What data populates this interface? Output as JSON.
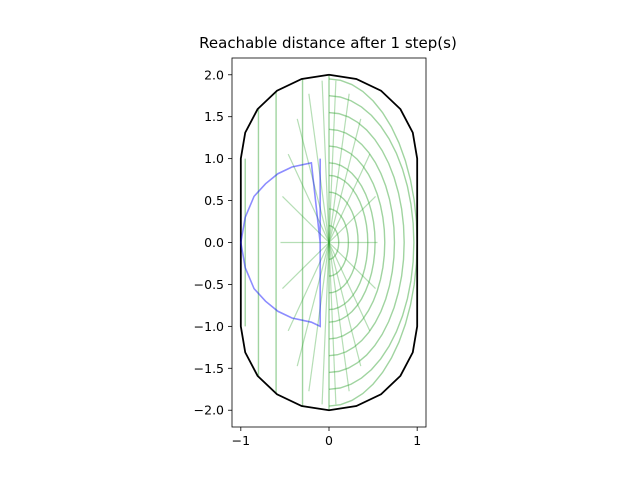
{
  "chart_data": {
    "type": "line",
    "title": "Reachable distance after 1 step(s)",
    "xlabel": "",
    "ylabel": "",
    "xlim": [
      -1.1,
      1.1
    ],
    "ylim": [
      -2.2,
      2.2
    ],
    "xticks": [
      -1,
      0,
      1
    ],
    "xtick_labels": [
      "−1",
      "0",
      "1"
    ],
    "yticks": [
      -2.0,
      -1.5,
      -1.0,
      -0.5,
      0.0,
      0.5,
      1.0,
      1.5,
      2.0
    ],
    "ytick_labels": [
      "−2.0",
      "−1.5",
      "−1.0",
      "−0.5",
      "0.0",
      "0.5",
      "1.0",
      "1.5",
      "2.0"
    ],
    "grid": false,
    "colors": {
      "boundary": "#000000",
      "paths": "#2ca02c",
      "initial_region": "#0000ff"
    },
    "series": [
      {
        "kind": "boundary",
        "x": [
          0,
          0.31,
          0.59,
          0.81,
          0.95,
          1.0,
          1.0,
          0.95,
          0.81,
          0.59,
          0.31,
          0,
          -0.31,
          -0.59,
          -0.81,
          -0.95,
          -1.0,
          -1.0,
          -0.95,
          -0.81,
          -0.59,
          -0.31,
          0
        ],
        "y": [
          2.0,
          1.95,
          1.81,
          1.59,
          1.31,
          1.0,
          -1.0,
          -1.31,
          -1.59,
          -1.81,
          -1.95,
          -2.0,
          -1.95,
          -1.81,
          -1.59,
          -1.31,
          -1.0,
          1.0,
          1.31,
          1.59,
          1.81,
          1.95,
          2.0
        ]
      },
      {
        "kind": "initial_region",
        "x": [
          -0.1,
          -0.1,
          -0.2,
          -0.42,
          -0.58,
          -0.72,
          -0.85,
          -0.95,
          -1.0,
          -0.95,
          -0.85,
          -0.72,
          -0.58,
          -0.42,
          -0.2,
          -0.1,
          -0.1
        ],
        "y": [
          1.0,
          0.0,
          0.95,
          0.9,
          0.82,
          0.7,
          0.55,
          0.3,
          0.0,
          -0.3,
          -0.55,
          -0.7,
          -0.82,
          -0.9,
          -0.95,
          -1.0,
          1.0
        ]
      }
    ]
  }
}
